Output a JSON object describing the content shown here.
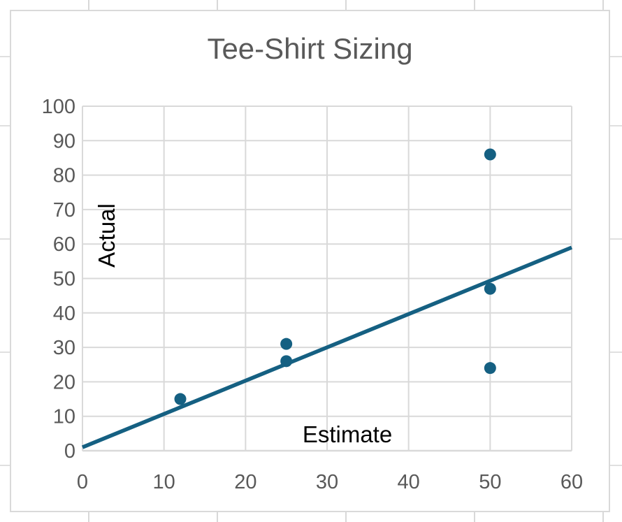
{
  "chart_data": {
    "type": "scatter",
    "title": "Tee-Shirt Sizing",
    "xlabel": "Estimate",
    "ylabel": "Actual",
    "xlim": [
      0,
      60
    ],
    "ylim": [
      0,
      100
    ],
    "x_ticks": [
      0,
      10,
      20,
      30,
      40,
      50,
      60
    ],
    "y_ticks": [
      0,
      10,
      20,
      30,
      40,
      50,
      60,
      70,
      80,
      90,
      100
    ],
    "grid": true,
    "legend": "none",
    "points": [
      {
        "x": 12,
        "y": 15
      },
      {
        "x": 25,
        "y": 26
      },
      {
        "x": 25,
        "y": 31
      },
      {
        "x": 50,
        "y": 24
      },
      {
        "x": 50,
        "y": 47
      },
      {
        "x": 50,
        "y": 86
      }
    ],
    "trendline": {
      "type": "linear",
      "x_start": 0,
      "y_start": 1,
      "x_end": 60,
      "y_end": 59
    },
    "colors": {
      "marker": "#156082",
      "trendline": "#156082",
      "grid": "#d9d9d9",
      "chart_border": "#d9d9d9",
      "tick_text": "#595959",
      "title_text": "#595959",
      "axis_title_text": "#000000",
      "chart_background": "#ffffff"
    }
  }
}
